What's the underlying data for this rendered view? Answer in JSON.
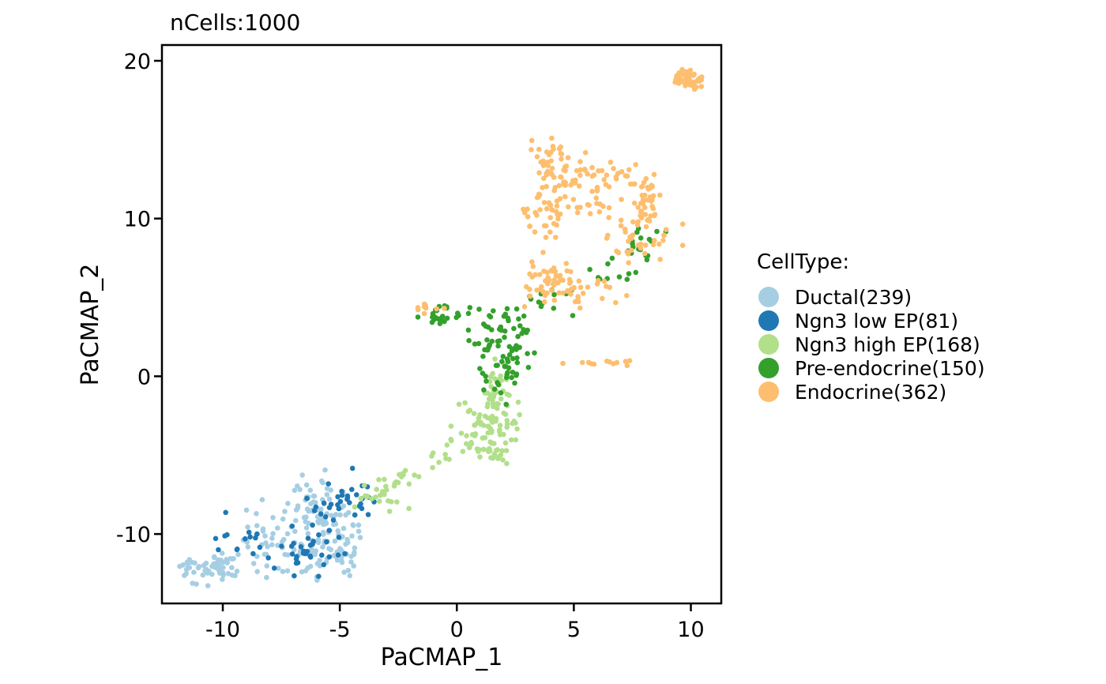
{
  "chart_data": {
    "type": "scatter",
    "title": "nCells:1000",
    "xlabel": "PaCMAP_1",
    "ylabel": "PaCMAP_2",
    "xlim": [
      -12.6,
      11.3
    ],
    "ylim": [
      -14.4,
      21.0
    ],
    "x_ticks": [
      -10,
      -5,
      0,
      5,
      10
    ],
    "x_tick_labels": [
      "-10",
      "-5",
      "0",
      "5",
      "10"
    ],
    "y_ticks": [
      -10,
      0,
      10,
      20
    ],
    "y_tick_labels": [
      "-10",
      "0",
      "10",
      "20"
    ],
    "grid": false,
    "legend": {
      "title": "CellType:",
      "placement": "right"
    },
    "series": [
      {
        "name": "Ductal(239)",
        "color": "#a6cee3",
        "clusters": [
          {
            "center": [
              -10.6,
              -12.0
            ],
            "spread": [
              0.6,
              0.45
            ],
            "count": 55
          },
          {
            "center": [
              -8.4,
              -10.3
            ],
            "spread": [
              0.9,
              1.3
            ],
            "count": 45
          },
          {
            "center": [
              -6.0,
              -8.3
            ],
            "spread": [
              0.45,
              0.9
            ],
            "count": 55
          },
          {
            "center": [
              -6.0,
              -11.3
            ],
            "spread": [
              0.9,
              0.8
            ],
            "count": 45
          },
          {
            "center": [
              -4.9,
              -10.0
            ],
            "spread": [
              0.4,
              0.9
            ],
            "count": 39
          }
        ]
      },
      {
        "name": "Ngn3 low EP(81)",
        "color": "#1f78b4",
        "clusters": [
          {
            "center": [
              -9.0,
              -10.0
            ],
            "spread": [
              0.9,
              0.9
            ],
            "count": 16
          },
          {
            "center": [
              -6.4,
              -11.4
            ],
            "spread": [
              0.8,
              0.7
            ],
            "count": 25
          },
          {
            "center": [
              -5.3,
              -9.0
            ],
            "spread": [
              0.6,
              1.2
            ],
            "count": 25
          },
          {
            "center": [
              -4.3,
              -7.6
            ],
            "spread": [
              0.5,
              0.5
            ],
            "count": 15
          }
        ]
      },
      {
        "name": "Ngn3 high EP(168)",
        "color": "#b2df8a",
        "clusters": [
          {
            "center": [
              -3.4,
              -7.6
            ],
            "spread": [
              0.6,
              0.5
            ],
            "count": 22
          },
          {
            "center": [
              -2.2,
              -6.4
            ],
            "spread": [
              0.5,
              0.3
            ],
            "count": 12
          },
          {
            "center": [
              -0.8,
              -5.2
            ],
            "spread": [
              0.4,
              0.4
            ],
            "count": 8
          },
          {
            "center": [
              1.4,
              -3.0
            ],
            "spread": [
              0.7,
              0.8
            ],
            "count": 70
          },
          {
            "center": [
              1.8,
              -0.8
            ],
            "spread": [
              0.4,
              0.8
            ],
            "count": 36
          },
          {
            "center": [
              1.5,
              -4.9
            ],
            "spread": [
              0.4,
              0.4
            ],
            "count": 20
          }
        ]
      },
      {
        "name": "Pre-endocrine(150)",
        "color": "#33a02c",
        "clusters": [
          {
            "center": [
              -0.8,
              3.8
            ],
            "spread": [
              0.5,
              0.4
            ],
            "count": 26
          },
          {
            "center": [
              1.8,
              2.6
            ],
            "spread": [
              0.6,
              1.0
            ],
            "count": 55
          },
          {
            "center": [
              2.0,
              0.2
            ],
            "spread": [
              0.6,
              0.8
            ],
            "count": 30
          },
          {
            "center": [
              4.5,
              4.8
            ],
            "spread": [
              0.8,
              0.5
            ],
            "count": 12
          },
          {
            "center": [
              6.8,
              6.6
            ],
            "spread": [
              0.5,
              0.5
            ],
            "count": 10
          },
          {
            "center": [
              8.0,
              8.4
            ],
            "spread": [
              0.4,
              0.5
            ],
            "count": 17
          }
        ]
      },
      {
        "name": "Endocrine(362)",
        "color": "#fdbf6f",
        "clusters": [
          {
            "center": [
              9.9,
              18.8
            ],
            "spread": [
              0.3,
              0.3
            ],
            "count": 55
          },
          {
            "center": [
              4.1,
              13.0
            ],
            "spread": [
              0.5,
              1.0
            ],
            "count": 50
          },
          {
            "center": [
              6.0,
              12.8
            ],
            "spread": [
              1.2,
              0.6
            ],
            "count": 45
          },
          {
            "center": [
              8.2,
              11.0
            ],
            "spread": [
              0.3,
              0.8
            ],
            "count": 35
          },
          {
            "center": [
              3.8,
              10.0
            ],
            "spread": [
              0.4,
              0.8
            ],
            "count": 30
          },
          {
            "center": [
              5.9,
              10.8
            ],
            "spread": [
              0.7,
              0.6
            ],
            "count": 20
          },
          {
            "center": [
              7.7,
              8.8
            ],
            "spread": [
              0.8,
              0.6
            ],
            "count": 35
          },
          {
            "center": [
              4.0,
              6.0
            ],
            "spread": [
              0.6,
              0.8
            ],
            "count": 50
          },
          {
            "center": [
              5.8,
              5.5
            ],
            "spread": [
              0.8,
              0.5
            ],
            "count": 20
          },
          {
            "center": [
              -1.1,
              4.3
            ],
            "spread": [
              0.4,
              0.2
            ],
            "count": 10
          },
          {
            "center": [
              6.5,
              0.8
            ],
            "spread": [
              0.8,
              0.25
            ],
            "count": 12
          }
        ]
      }
    ]
  }
}
